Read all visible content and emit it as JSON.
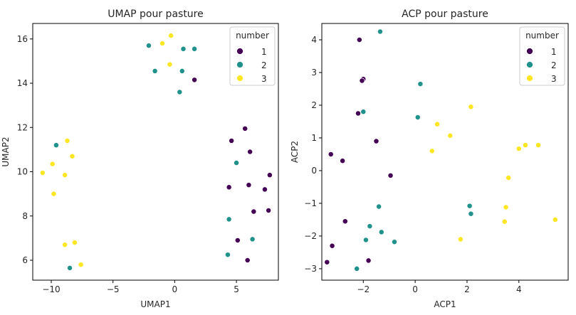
{
  "chart_data": [
    {
      "type": "scatter",
      "title": "UMAP pour pasture",
      "xlabel": "UMAP1",
      "ylabel": "UMAP2",
      "xlim": [
        -11.5,
        8.4
      ],
      "ylim": [
        5.1,
        16.7
      ],
      "xticks": [
        -10,
        -5,
        0,
        5
      ],
      "yticks": [
        6,
        8,
        10,
        12,
        14,
        16
      ],
      "xtick_labels": [
        "−10",
        "−5",
        "0",
        "5"
      ],
      "ytick_labels": [
        "6",
        "8",
        "10",
        "12",
        "14",
        "16"
      ],
      "grid": false,
      "legend": {
        "title": "number",
        "placement": "top-right",
        "entries": [
          "1",
          "2",
          "3"
        ]
      },
      "series": [
        {
          "name": "1",
          "color": "#440154",
          "x": [
            1.6,
            5.7,
            4.6,
            6.1,
            4.4,
            6.0,
            7.3,
            7.7,
            6.4,
            7.6,
            5.1,
            5.9
          ],
          "y": [
            14.15,
            11.95,
            11.4,
            10.9,
            9.3,
            9.4,
            9.2,
            9.85,
            8.2,
            8.25,
            6.9,
            6.0
          ]
        },
        {
          "name": "2",
          "color": "#21918c",
          "x": [
            -2.1,
            0.7,
            1.6,
            -1.6,
            0.6,
            0.4,
            -9.6,
            5.0,
            4.4,
            6.3,
            4.3,
            -8.5
          ],
          "y": [
            15.7,
            15.55,
            15.55,
            14.55,
            14.55,
            13.6,
            11.2,
            10.4,
            7.85,
            6.95,
            6.25,
            5.65
          ]
        },
        {
          "name": "3",
          "color": "#fde725",
          "x": [
            -0.3,
            -1.0,
            -0.4,
            -8.7,
            -8.3,
            -9.9,
            -10.7,
            -8.9,
            -9.8,
            -8.9,
            -8.1,
            -7.6
          ],
          "y": [
            16.15,
            15.8,
            14.85,
            11.4,
            10.7,
            10.35,
            9.95,
            9.85,
            9.0,
            6.7,
            6.8,
            5.8
          ]
        }
      ]
    },
    {
      "type": "scatter",
      "title": "ACP pour pasture",
      "xlabel": "ACP1",
      "ylabel": "ACP2",
      "xlim": [
        -3.6,
        5.9
      ],
      "ylim": [
        -3.35,
        4.5
      ],
      "xticks": [
        -2,
        0,
        2,
        4
      ],
      "yticks": [
        -3,
        -2,
        -1,
        0,
        1,
        2,
        3,
        4
      ],
      "xtick_labels": [
        "−2",
        "0",
        "2",
        "4"
      ],
      "ytick_labels": [
        "−3",
        "−2",
        "−1",
        "0",
        "1",
        "2",
        "3",
        "4"
      ],
      "grid": false,
      "legend": {
        "title": "number",
        "placement": "top-right",
        "entries": [
          "1",
          "2",
          "3"
        ]
      },
      "series": [
        {
          "name": "1",
          "color": "#440154",
          "x": [
            -2.15,
            -2.0,
            -2.05,
            -2.2,
            -1.5,
            -3.25,
            -2.8,
            -0.95,
            -2.7,
            -1.8,
            -3.2,
            -3.4
          ],
          "y": [
            4.0,
            2.8,
            2.75,
            1.75,
            0.9,
            0.5,
            0.3,
            -0.15,
            -1.55,
            -2.75,
            -2.3,
            -2.8
          ]
        },
        {
          "name": "2",
          "color": "#21918c",
          "x": [
            -1.35,
            0.2,
            -2.0,
            0.1,
            2.1,
            2.15,
            -1.4,
            -1.75,
            -1.3,
            -1.9,
            -0.8,
            -2.25
          ],
          "y": [
            4.25,
            2.65,
            1.8,
            1.63,
            -1.08,
            -1.32,
            -1.1,
            -1.7,
            -1.88,
            -2.12,
            -2.18,
            -3.0
          ]
        },
        {
          "name": "3",
          "color": "#fde725",
          "x": [
            2.15,
            0.85,
            1.35,
            0.65,
            4.25,
            4.0,
            4.75,
            3.6,
            3.5,
            3.45,
            5.4,
            1.75
          ],
          "y": [
            1.95,
            1.42,
            1.07,
            0.6,
            0.78,
            0.67,
            0.78,
            -0.22,
            -1.12,
            -1.56,
            -1.5,
            -2.1
          ]
        }
      ]
    }
  ]
}
